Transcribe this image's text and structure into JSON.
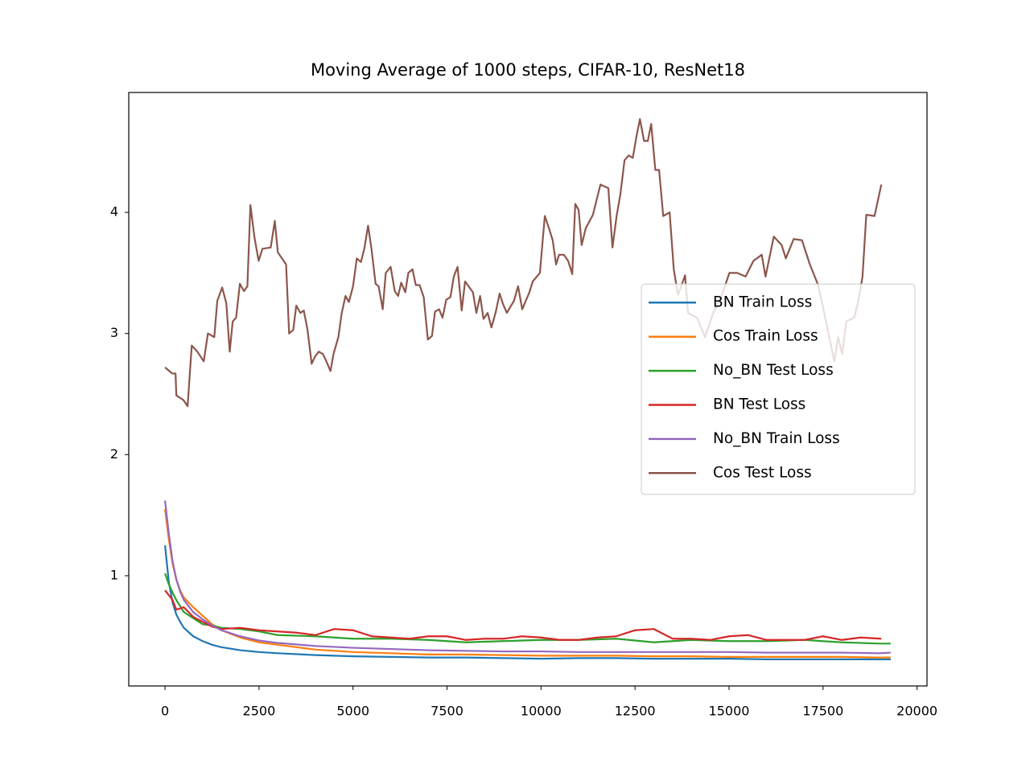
{
  "chart_data": {
    "type": "line",
    "title": "Moving Average of 1000 steps, CIFAR-10, ResNet18",
    "x": [
      0,
      100,
      200,
      300,
      400,
      500,
      750,
      1000,
      1250,
      1500,
      2000,
      2500,
      3000,
      4000,
      5000,
      6000,
      7000,
      8000,
      9000,
      10000,
      11000,
      12000,
      13000,
      14000,
      15000,
      16000,
      17000,
      18000,
      19000,
      19300
    ],
    "series": [
      {
        "name": "BN Train Loss",
        "color": "#1f77b4",
        "values": [
          1.25,
          0.95,
          0.78,
          0.68,
          0.62,
          0.57,
          0.5,
          0.46,
          0.43,
          0.41,
          0.385,
          0.37,
          0.36,
          0.345,
          0.335,
          0.33,
          0.325,
          0.325,
          0.32,
          0.315,
          0.32,
          0.32,
          0.315,
          0.315,
          0.315,
          0.31,
          0.31,
          0.31,
          0.31,
          0.31
        ]
      },
      {
        "name": "Cos Train Loss",
        "color": "#ff7f0e",
        "values": [
          1.55,
          1.3,
          1.1,
          0.97,
          0.88,
          0.82,
          0.74,
          0.67,
          0.6,
          0.55,
          0.49,
          0.45,
          0.43,
          0.39,
          0.37,
          0.36,
          0.35,
          0.35,
          0.345,
          0.34,
          0.34,
          0.34,
          0.335,
          0.335,
          0.33,
          0.33,
          0.33,
          0.33,
          0.325,
          0.325
        ]
      },
      {
        "name": "No_BN Test Loss",
        "color": "#2ca02c",
        "values": [
          1.02,
          0.93,
          0.86,
          0.8,
          0.75,
          0.7,
          0.65,
          0.6,
          0.59,
          0.57,
          0.56,
          0.54,
          0.51,
          0.5,
          0.48,
          0.48,
          0.47,
          0.45,
          0.46,
          0.47,
          0.47,
          0.48,
          0.45,
          0.47,
          0.46,
          0.46,
          0.47,
          0.45,
          0.44,
          0.44
        ]
      },
      {
        "name": "BN Test Loss",
        "color": "#d62728",
        "x": [
          0,
          200,
          300,
          500,
          750,
          1000,
          1250,
          1500,
          2000,
          2500,
          3000,
          3500,
          4000,
          4500,
          5000,
          5500,
          6000,
          6500,
          7000,
          7500,
          8000,
          8500,
          9000,
          9500,
          10000,
          10500,
          11000,
          11500,
          12000,
          12500,
          13000,
          13500,
          14000,
          14500,
          15000,
          15500,
          16000,
          16500,
          17000,
          17500,
          18000,
          18500,
          19050
        ],
        "values": [
          0.88,
          0.8,
          0.72,
          0.74,
          0.66,
          0.62,
          0.58,
          0.56,
          0.57,
          0.55,
          0.54,
          0.53,
          0.51,
          0.56,
          0.55,
          0.5,
          0.49,
          0.48,
          0.5,
          0.5,
          0.47,
          0.48,
          0.48,
          0.5,
          0.49,
          0.47,
          0.47,
          0.49,
          0.5,
          0.55,
          0.56,
          0.48,
          0.48,
          0.47,
          0.5,
          0.51,
          0.47,
          0.47,
          0.47,
          0.5,
          0.47,
          0.49,
          0.48
        ]
      },
      {
        "name": "No_BN Train Loss",
        "color": "#9467bd",
        "values": [
          1.62,
          1.35,
          1.12,
          0.97,
          0.87,
          0.8,
          0.7,
          0.64,
          0.59,
          0.55,
          0.5,
          0.465,
          0.445,
          0.42,
          0.405,
          0.395,
          0.385,
          0.38,
          0.375,
          0.375,
          0.37,
          0.37,
          0.37,
          0.37,
          0.37,
          0.365,
          0.365,
          0.365,
          0.36,
          0.365
        ]
      },
      {
        "name": "Cos Test Loss",
        "color": "#8c564b",
        "x": [
          0,
          190,
          280,
          300,
          490,
          600,
          710,
          860,
          1030,
          1140,
          1310,
          1390,
          1520,
          1630,
          1720,
          1800,
          1890,
          1990,
          2100,
          2190,
          2270,
          2380,
          2490,
          2590,
          2810,
          2920,
          3000,
          3220,
          3300,
          3410,
          3490,
          3600,
          3690,
          3790,
          3900,
          3990,
          4090,
          4200,
          4290,
          4400,
          4480,
          4610,
          4700,
          4800,
          4890,
          5000,
          5100,
          5210,
          5300,
          5400,
          5490,
          5600,
          5680,
          5790,
          5870,
          6000,
          6110,
          6200,
          6280,
          6390,
          6470,
          6580,
          6670,
          6770,
          6880,
          6990,
          7100,
          7180,
          7290,
          7380,
          7480,
          7590,
          7680,
          7780,
          7890,
          7980,
          8190,
          8280,
          8380,
          8470,
          8580,
          8680,
          8790,
          8900,
          8980,
          9090,
          9280,
          9390,
          9500,
          9690,
          9780,
          9970,
          10100,
          10210,
          10310,
          10400,
          10480,
          10610,
          10720,
          10830,
          10910,
          11000,
          11080,
          11190,
          11380,
          11580,
          11790,
          11900,
          12010,
          12110,
          12220,
          12330,
          12440,
          12540,
          12630,
          12740,
          12840,
          12930,
          13040,
          13140,
          13250,
          13420,
          13530,
          13640,
          13740,
          13830,
          13910,
          14150,
          14360,
          14580,
          14790,
          15010,
          15220,
          15440,
          15650,
          15870,
          15970,
          16190,
          16400,
          16510,
          16720,
          16940,
          17150,
          17370,
          17580,
          17800,
          17900,
          18010,
          18120,
          18330,
          18440,
          18550,
          18650,
          18870,
          19050
        ],
        "values": [
          2.72,
          2.67,
          2.67,
          2.49,
          2.45,
          2.4,
          2.9,
          2.85,
          2.77,
          3.0,
          2.97,
          3.27,
          3.38,
          3.25,
          2.85,
          3.1,
          3.13,
          3.41,
          3.35,
          3.39,
          4.06,
          3.79,
          3.6,
          3.7,
          3.71,
          3.93,
          3.67,
          3.57,
          3.0,
          3.03,
          3.23,
          3.17,
          3.19,
          3.03,
          2.75,
          2.81,
          2.85,
          2.83,
          2.77,
          2.69,
          2.83,
          2.97,
          3.17,
          3.31,
          3.26,
          3.39,
          3.62,
          3.59,
          3.7,
          3.89,
          3.7,
          3.41,
          3.39,
          3.2,
          3.5,
          3.55,
          3.35,
          3.31,
          3.42,
          3.34,
          3.5,
          3.53,
          3.4,
          3.4,
          3.3,
          2.95,
          2.98,
          3.18,
          3.2,
          3.13,
          3.28,
          3.3,
          3.47,
          3.55,
          3.19,
          3.43,
          3.34,
          3.17,
          3.31,
          3.12,
          3.17,
          3.05,
          3.17,
          3.33,
          3.25,
          3.17,
          3.27,
          3.39,
          3.2,
          3.34,
          3.43,
          3.5,
          3.97,
          3.87,
          3.77,
          3.57,
          3.65,
          3.65,
          3.6,
          3.49,
          4.07,
          4.02,
          3.73,
          3.87,
          3.98,
          4.23,
          4.2,
          3.71,
          3.97,
          4.15,
          4.43,
          4.47,
          4.45,
          4.63,
          4.77,
          4.59,
          4.59,
          4.73,
          4.35,
          4.35,
          3.97,
          4.0,
          3.53,
          3.32,
          3.4,
          3.48,
          3.17,
          3.13,
          2.97,
          3.17,
          3.3,
          3.5,
          3.5,
          3.47,
          3.6,
          3.65,
          3.47,
          3.8,
          3.73,
          3.62,
          3.78,
          3.77,
          3.57,
          3.4,
          3.1,
          2.77,
          2.97,
          2.83,
          3.1,
          3.13,
          3.27,
          3.47,
          3.98,
          3.97,
          4.23
        ]
      }
    ],
    "xlim": [
      -965,
      20265
    ],
    "ylim": [
      0.09,
      4.99
    ],
    "xticks": [
      0,
      2500,
      5000,
      7500,
      10000,
      12500,
      15000,
      17500,
      20000
    ],
    "yticks": [
      1,
      2,
      3,
      4
    ],
    "legend": "center right"
  }
}
